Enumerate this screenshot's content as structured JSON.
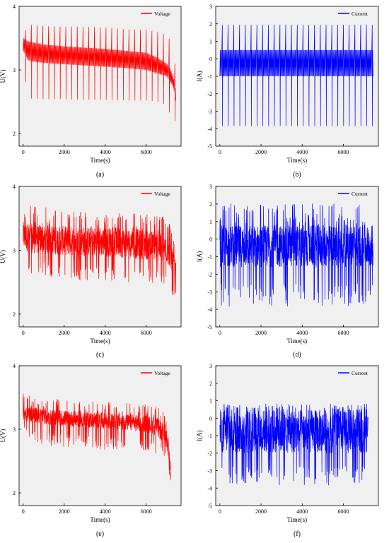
{
  "chart_data": [
    {
      "panel": "(a)",
      "type": "line",
      "profile": "pulse",
      "xlabel": "Time(s)",
      "ylabel": "U(V)",
      "xlim": [
        -200,
        7700
      ],
      "ylim": [
        1.8,
        4.0
      ],
      "xticks": [
        0,
        2000,
        4000,
        6000
      ],
      "yticks": [
        2,
        3,
        4
      ],
      "series": [
        {
          "name": "Voltage",
          "color": "#ff0000",
          "x": [
            0,
            250,
            500,
            1000,
            2000,
            3000,
            4000,
            5000,
            6000,
            6500,
            7000,
            7200,
            7300,
            7400,
            7450
          ],
          "upper": [
            3.55,
            3.72,
            3.7,
            3.69,
            3.68,
            3.68,
            3.67,
            3.64,
            3.63,
            3.6,
            3.55,
            3.45,
            3.3,
            3.1,
            3.0
          ],
          "lower": [
            3.05,
            2.55,
            2.55,
            2.54,
            2.54,
            2.53,
            2.53,
            2.52,
            2.52,
            2.5,
            2.45,
            2.25,
            2.25,
            2.2,
            2.0
          ],
          "upper_rest": [
            3.5,
            3.45,
            3.43,
            3.4,
            3.37,
            3.35,
            3.33,
            3.3,
            3.27,
            3.2,
            3.1,
            3.0,
            2.9,
            2.8,
            2.6
          ],
          "lower_rest": [
            3.3,
            3.15,
            3.13,
            3.11,
            3.09,
            3.07,
            3.05,
            3.03,
            3.0,
            2.95,
            2.9,
            2.8,
            2.75,
            2.6,
            2.5
          ]
        }
      ]
    },
    {
      "panel": "(b)",
      "type": "line",
      "profile": "pulse",
      "xlabel": "Time(s)",
      "ylabel": "I(A)",
      "xlim": [
        -200,
        7700
      ],
      "ylim": [
        -5,
        3
      ],
      "xticks": [
        0,
        2000,
        4000,
        6000
      ],
      "yticks": [
        -5,
        -4,
        -3,
        -2,
        -1,
        0,
        1,
        2,
        3
      ],
      "series": [
        {
          "name": "Current",
          "color": "#0000ff",
          "x": [
            0,
            7450
          ],
          "upper": [
            1.95,
            1.95
          ],
          "lower": [
            -3.85,
            -3.85
          ],
          "upper_rest": [
            0.5,
            0.5
          ],
          "lower_rest": [
            -1.0,
            -1.0
          ]
        }
      ]
    },
    {
      "panel": "(c)",
      "type": "line",
      "profile": "dense",
      "xlabel": "Time(s)",
      "ylabel": "U(V)",
      "xlim": [
        -200,
        7700
      ],
      "ylim": [
        1.8,
        4.0
      ],
      "xticks": [
        0,
        2000,
        4000,
        6000
      ],
      "yticks": [
        2,
        3,
        4
      ],
      "series": [
        {
          "name": "Voltage",
          "color": "#ff0000",
          "x": [
            0,
            500,
            1000,
            2000,
            3000,
            4000,
            5000,
            6000,
            6500,
            7000,
            7200,
            7300,
            7400,
            7450
          ],
          "upper": [
            3.7,
            3.72,
            3.68,
            3.65,
            3.66,
            3.64,
            3.62,
            3.6,
            3.6,
            3.55,
            3.4,
            3.3,
            3.2,
            3.1
          ],
          "lower": [
            2.6,
            2.55,
            2.58,
            2.55,
            2.52,
            2.52,
            2.5,
            2.48,
            2.47,
            2.45,
            2.3,
            2.2,
            2.2,
            2.4
          ],
          "upper_rest": [
            3.45,
            3.4,
            3.4,
            3.38,
            3.37,
            3.36,
            3.35,
            3.33,
            3.3,
            3.2,
            3.1,
            3.0,
            2.9,
            2.8
          ],
          "lower_rest": [
            3.0,
            2.95,
            2.95,
            2.92,
            2.9,
            2.9,
            2.88,
            2.85,
            2.83,
            2.8,
            2.7,
            2.6,
            2.55,
            2.5
          ]
        }
      ]
    },
    {
      "panel": "(d)",
      "type": "line",
      "profile": "dense",
      "xlabel": "Time(s)",
      "ylabel": "I(A)",
      "xlim": [
        -200,
        7700
      ],
      "ylim": [
        -5,
        3
      ],
      "xticks": [
        0,
        2000,
        4000,
        6000
      ],
      "yticks": [
        -5,
        -4,
        -3,
        -2,
        -1,
        0,
        1,
        2,
        3
      ],
      "series": [
        {
          "name": "Current",
          "color": "#0000ff",
          "x": [
            0,
            7450
          ],
          "upper": [
            2.05,
            2.05
          ],
          "lower": [
            -3.85,
            -3.85
          ],
          "upper_rest": [
            0.8,
            0.8
          ],
          "lower_rest": [
            -1.6,
            -1.6
          ]
        }
      ]
    },
    {
      "panel": "(e)",
      "type": "line",
      "profile": "dense",
      "xlabel": "Time(s)",
      "ylabel": "U(V)",
      "xlim": [
        -200,
        7700
      ],
      "ylim": [
        1.8,
        4.0
      ],
      "xticks": [
        0,
        2000,
        4000,
        6000
      ],
      "yticks": [
        2,
        3,
        4
      ],
      "series": [
        {
          "name": "Voltage",
          "color": "#ff0000",
          "x": [
            0,
            500,
            1000,
            2000,
            3000,
            4000,
            5000,
            6000,
            6500,
            6800,
            7000,
            7100,
            7150,
            7200
          ],
          "upper": [
            3.58,
            3.52,
            3.5,
            3.47,
            3.46,
            3.44,
            3.42,
            3.4,
            3.38,
            3.3,
            3.1,
            2.9,
            2.7,
            2.5
          ],
          "lower": [
            3.0,
            2.8,
            2.75,
            2.72,
            2.7,
            2.68,
            2.66,
            2.64,
            2.6,
            2.55,
            2.45,
            2.3,
            2.15,
            2.0
          ],
          "upper_rest": [
            3.4,
            3.35,
            3.33,
            3.3,
            3.28,
            3.26,
            3.24,
            3.22,
            3.18,
            3.1,
            2.95,
            2.8,
            2.6,
            2.4
          ],
          "lower_rest": [
            3.15,
            3.1,
            3.08,
            3.05,
            3.03,
            3.0,
            2.98,
            2.95,
            2.9,
            2.8,
            2.7,
            2.5,
            2.3,
            2.1
          ]
        }
      ]
    },
    {
      "panel": "(f)",
      "type": "line",
      "profile": "dense",
      "xlabel": "Time(s)",
      "ylabel": "I(A)",
      "xlim": [
        -200,
        7700
      ],
      "ylim": [
        -5,
        3
      ],
      "xticks": [
        0,
        2000,
        4000,
        6000
      ],
      "yticks": [
        -5,
        -4,
        -3,
        -2,
        -1,
        0,
        1,
        2,
        3
      ],
      "series": [
        {
          "name": "Current",
          "color": "#0000ff",
          "x": [
            0,
            7200
          ],
          "upper": [
            0.85,
            0.85
          ],
          "lower": [
            -3.85,
            -3.85
          ],
          "upper_rest": [
            0.5,
            0.5
          ],
          "lower_rest": [
            -2.0,
            -2.0
          ]
        }
      ]
    }
  ]
}
